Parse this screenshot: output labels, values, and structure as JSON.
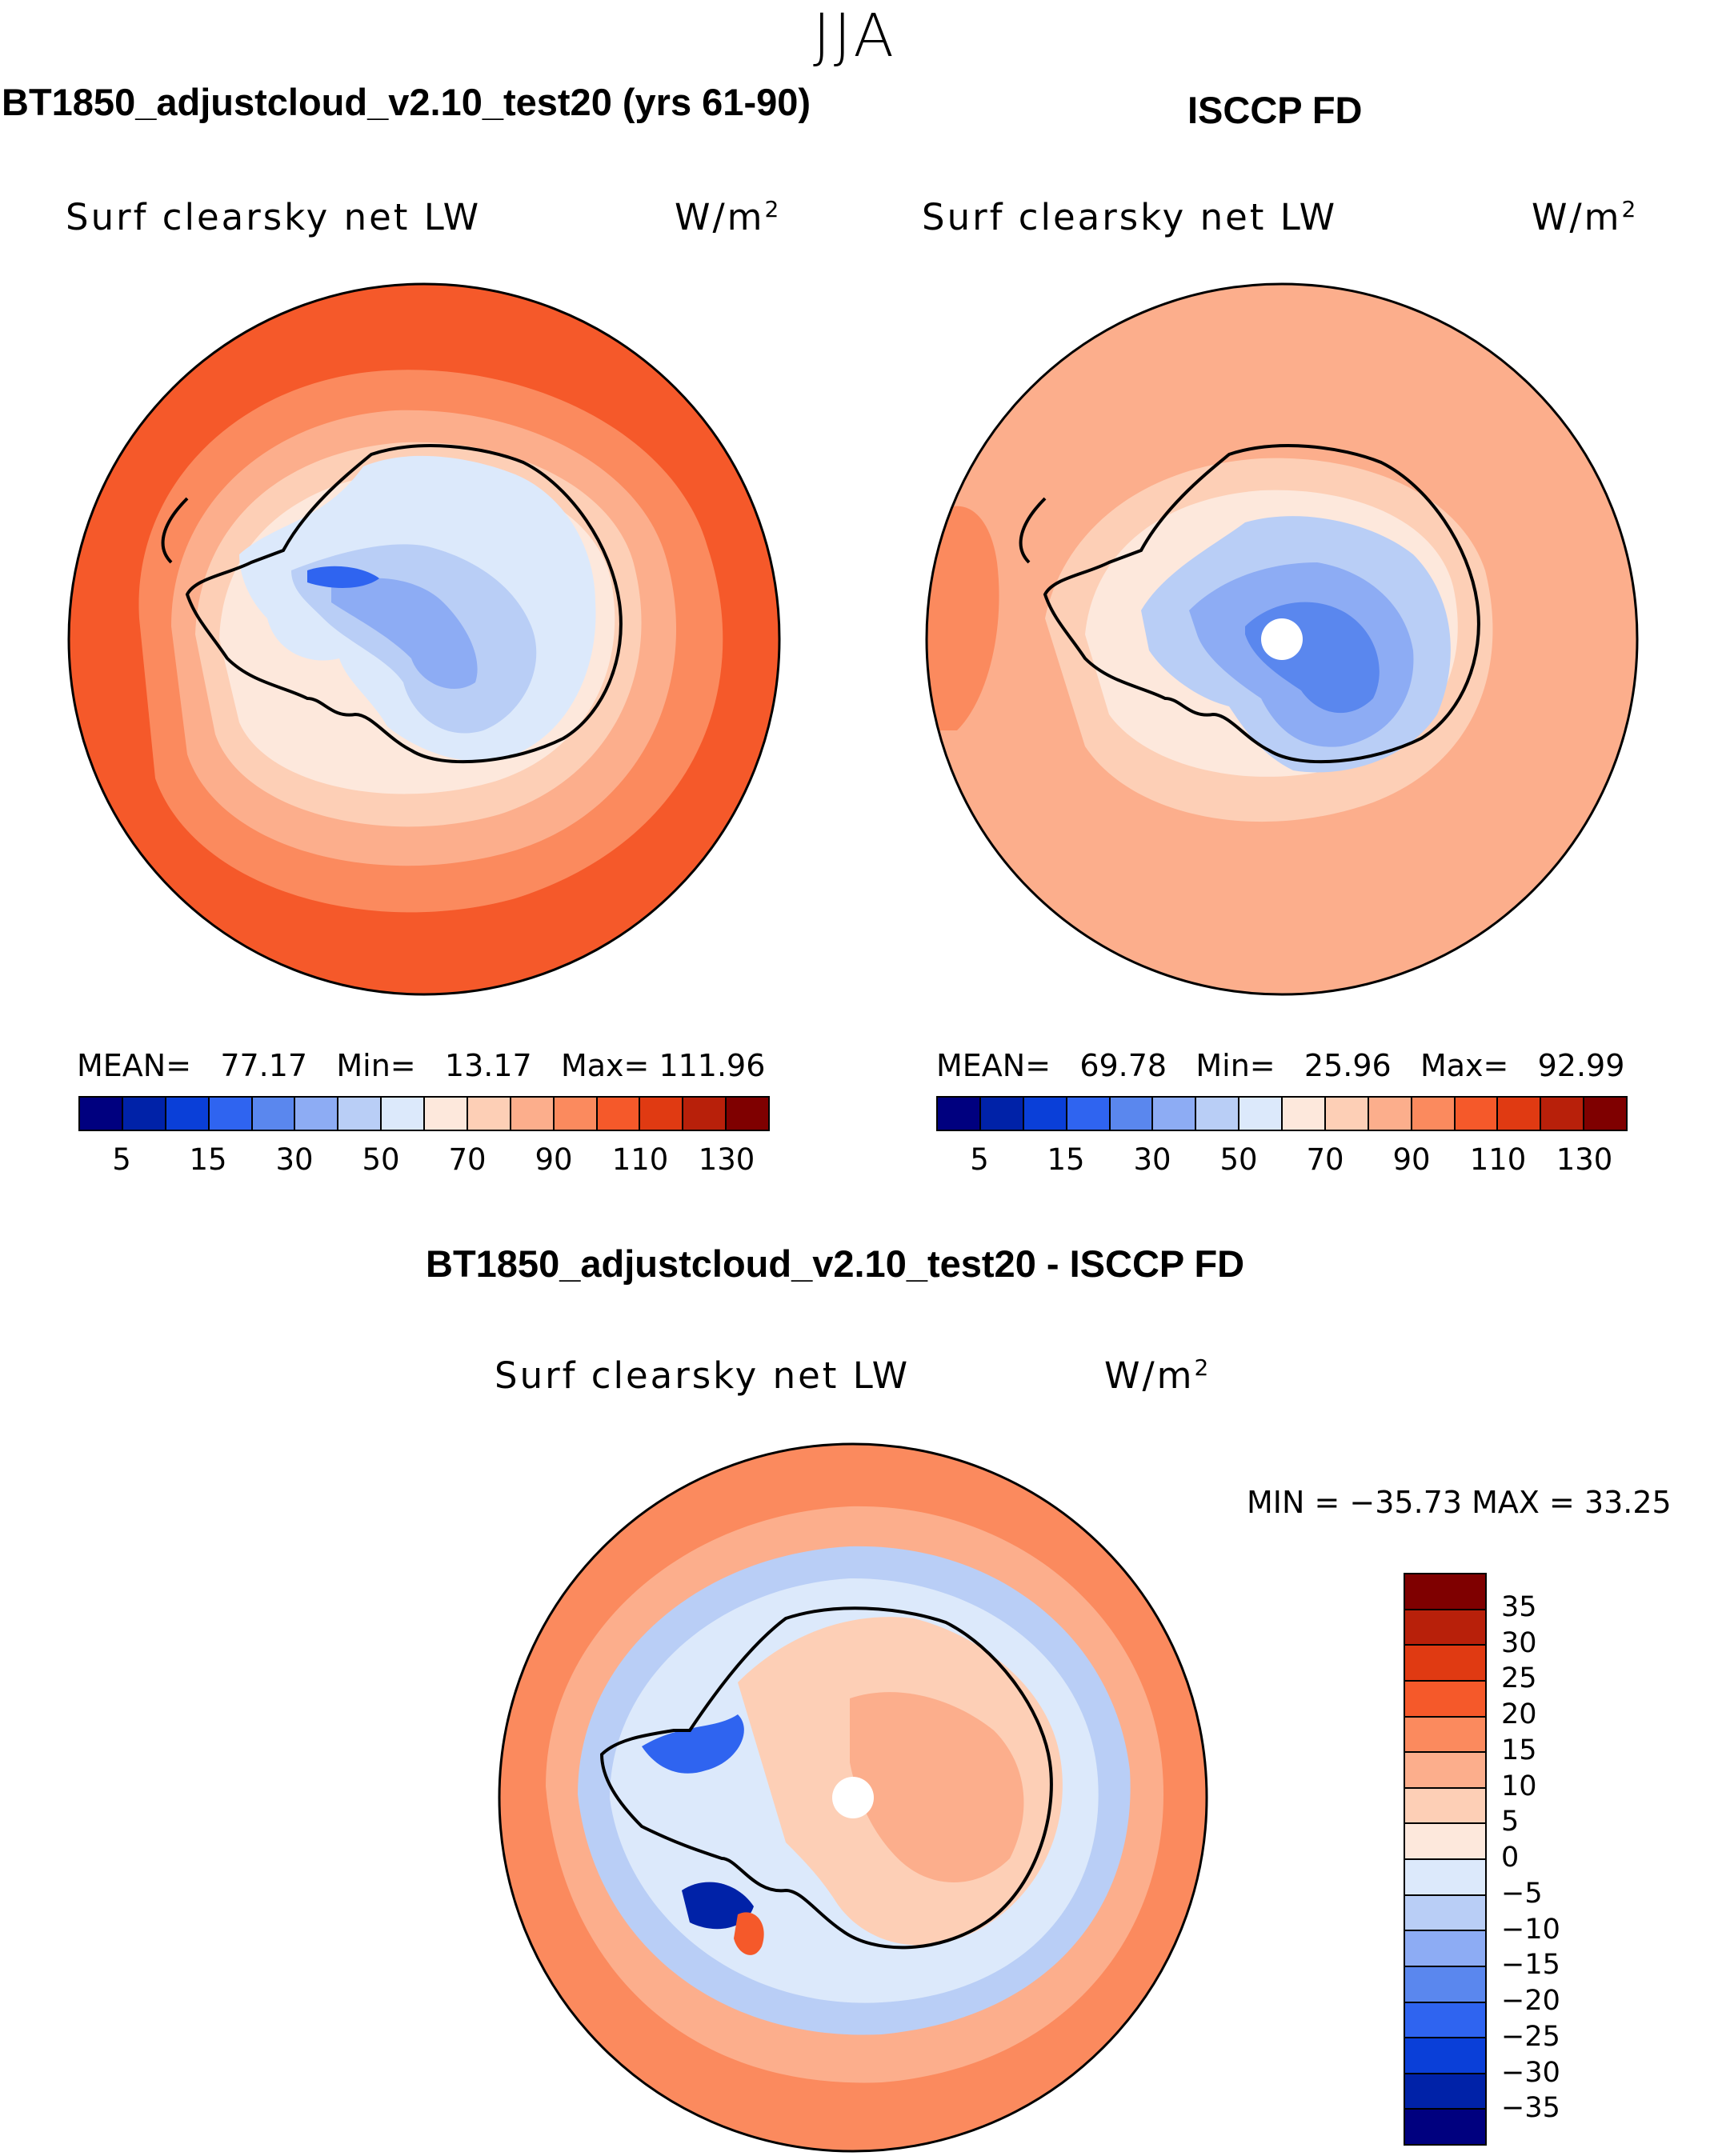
{
  "season": "JJA",
  "panels": {
    "model": {
      "title": "BT1850_adjustcloud_v2.10_test20 (yrs 61-90)",
      "variable": "Surf  clearsky  net  LW",
      "units": "W/m",
      "units_exp": "2",
      "stats": {
        "mean_label": "MEAN=",
        "mean": "77.17",
        "min_label": "Min=",
        "min": "13.17",
        "max_label": "Max=",
        "max": "111.96"
      },
      "ticks": [
        "5",
        "15",
        "30",
        "50",
        "70",
        "90",
        "110",
        "130"
      ]
    },
    "obs": {
      "title": "ISCCP FD",
      "variable": "Surf  clearsky  net  LW",
      "units": "W/m",
      "units_exp": "2",
      "stats": {
        "mean_label": "MEAN=",
        "mean": "69.78",
        "min_label": "Min=",
        "min": "25.96",
        "max_label": "Max=",
        "max": "92.99"
      },
      "ticks": [
        "5",
        "15",
        "30",
        "50",
        "70",
        "90",
        "110",
        "130"
      ]
    },
    "diff": {
      "title": "BT1850_adjustcloud_v2.10_test20 - ISCCP FD",
      "variable": "Surf  clearsky  net  LW",
      "units": "W/m",
      "units_exp": "2",
      "stats_text": "MIN = −35.73  MAX =   33.25",
      "ticks": [
        "35",
        "30",
        "25",
        "20",
        "15",
        "10",
        "5",
        "0",
        "−5",
        "−10",
        "−15",
        "−20",
        "−25",
        "−30",
        "−35"
      ]
    }
  },
  "colors": {
    "abs_scale": [
      "#00007f",
      "#0022a8",
      "#0a3fd8",
      "#2f64f0",
      "#5a87ee",
      "#8dacf4",
      "#b9cef6",
      "#dce9fb",
      "#fde8dc",
      "#fdcfb6",
      "#fcae8c",
      "#fb8a5e",
      "#f5592a",
      "#e03a12",
      "#b8200a",
      "#7f0000"
    ],
    "diff_scale": [
      "#7f0000",
      "#b8200a",
      "#e03a12",
      "#f5592a",
      "#fb8a5e",
      "#fcae8c",
      "#fdcfb6",
      "#fde8dc",
      "#dce9fb",
      "#b9cef6",
      "#8dacf4",
      "#5a87ee",
      "#2f64f0",
      "#0a3fd8",
      "#0022a8",
      "#00007f"
    ]
  }
}
